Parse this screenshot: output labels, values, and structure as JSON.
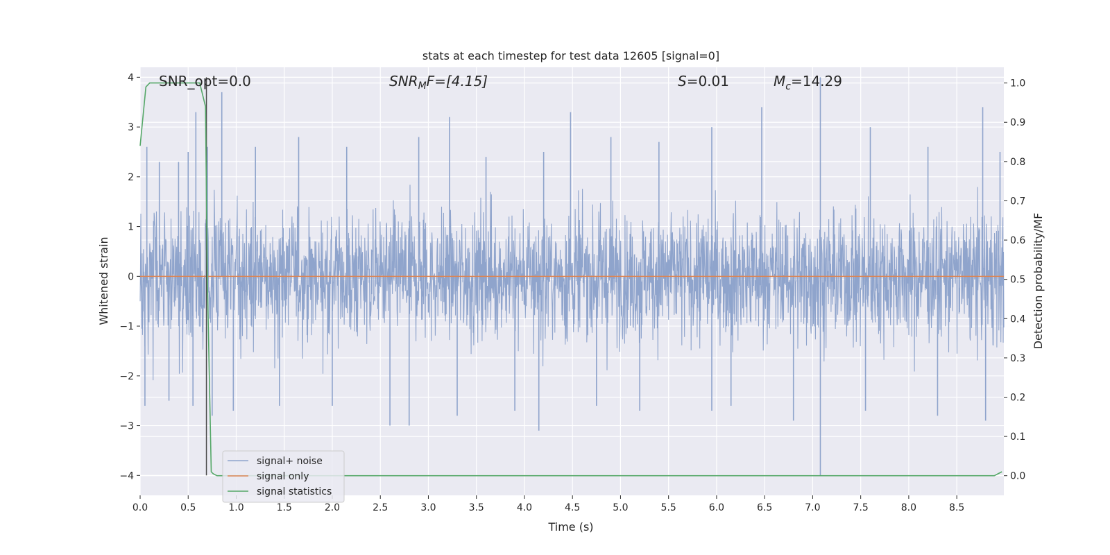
{
  "chart_data": {
    "type": "line",
    "title": "stats at each timestep for test data 12605 [signal=0]",
    "xlabel": "Time (s)",
    "ylabel": "Whitened strain",
    "y2label": "Detection probability/MF",
    "xlim": [
      0.0,
      8.99
    ],
    "ylim": [
      -4.4,
      4.2
    ],
    "y2lim": [
      -0.05,
      1.04
    ],
    "x_ticks": [
      "0.0",
      "0.5",
      "1.0",
      "1.5",
      "2.0",
      "2.5",
      "3.0",
      "3.5",
      "4.0",
      "4.5",
      "5.0",
      "5.5",
      "6.0",
      "6.5",
      "7.0",
      "7.5",
      "8.0",
      "8.5"
    ],
    "x_tick_values": [
      0.0,
      0.5,
      1.0,
      1.5,
      2.0,
      2.5,
      3.0,
      3.5,
      4.0,
      4.5,
      5.0,
      5.5,
      6.0,
      6.5,
      7.0,
      7.5,
      8.0,
      8.5
    ],
    "y_ticks": [
      "−4",
      "−3",
      "−2",
      "−1",
      "0",
      "1",
      "2",
      "3",
      "4"
    ],
    "y_tick_values": [
      -4,
      -3,
      -2,
      -1,
      0,
      1,
      2,
      3,
      4
    ],
    "y2_ticks": [
      "0.0",
      "0.1",
      "0.2",
      "0.3",
      "0.4",
      "0.5",
      "0.6",
      "0.7",
      "0.8",
      "0.9",
      "1.0"
    ],
    "y2_tick_values": [
      0.0,
      0.1,
      0.2,
      0.3,
      0.4,
      0.5,
      0.6,
      0.7,
      0.8,
      0.9,
      1.0
    ],
    "grid": true,
    "legend_position": "lower-left",
    "annotations": {
      "snr_opt": "SNR_opt=0.0",
      "snr_mf_base": "SNR",
      "snr_mf_sub": "M",
      "snr_mf_rest": "F=[4.15]",
      "s_label": "S",
      "s_value": "=0.01",
      "mc_base": "M",
      "mc_sub": "c",
      "mc_value": "=14.29"
    },
    "vertical_marker": {
      "x": 0.69,
      "y_top": 4.0,
      "y_bottom": -4.0
    },
    "series": [
      {
        "name": "signal+ noise",
        "color": "#8fa4cc",
        "axis": "left",
        "description": "whitened noise time series",
        "envelope_peaks_x": [
          0.07,
          0.2,
          0.4,
          0.5,
          0.58,
          0.7,
          0.85,
          1.2,
          1.65,
          2.15,
          2.9,
          3.22,
          3.6,
          4.2,
          4.48,
          4.9,
          5.4,
          5.95,
          6.47,
          7.08,
          7.6,
          8.2,
          8.77,
          8.95
        ],
        "envelope_peaks_y": [
          2.6,
          2.3,
          2.3,
          2.5,
          3.3,
          2.6,
          3.7,
          2.6,
          2.8,
          2.6,
          2.8,
          3.2,
          2.4,
          2.5,
          3.3,
          2.8,
          2.7,
          3.0,
          3.4,
          4.0,
          3.0,
          2.6,
          3.4,
          2.5
        ],
        "envelope_troughs_x": [
          0.05,
          0.3,
          0.55,
          0.75,
          0.97,
          1.45,
          2.0,
          2.6,
          2.8,
          3.3,
          3.9,
          4.15,
          4.75,
          5.2,
          5.95,
          6.15,
          6.8,
          7.08,
          7.55,
          8.3,
          8.8
        ],
        "envelope_troughs_y": [
          -2.6,
          -2.5,
          -2.6,
          -2.8,
          -2.7,
          -2.6,
          -2.6,
          -3.0,
          -3.0,
          -2.8,
          -2.7,
          -3.1,
          -2.6,
          -2.7,
          -2.7,
          -2.6,
          -2.9,
          -4.0,
          -2.7,
          -2.8,
          -2.9
        ]
      },
      {
        "name": "signal only",
        "color": "#dd8452",
        "axis": "left",
        "x": [
          0.0,
          8.99
        ],
        "y": [
          0.0,
          0.0
        ]
      },
      {
        "name": "signal statistics",
        "color": "#55a868",
        "axis": "right",
        "x": [
          0.0,
          0.06,
          0.1,
          0.2,
          0.3,
          0.4,
          0.5,
          0.6,
          0.62,
          0.68,
          0.7,
          0.74,
          0.76,
          0.8,
          0.9,
          1.5,
          2.0,
          3.0,
          4.0,
          5.0,
          6.0,
          7.0,
          8.0,
          8.89,
          8.97
        ],
        "y": [
          0.84,
          0.99,
          1.0,
          1.0,
          1.0,
          1.0,
          1.0,
          1.0,
          1.0,
          0.94,
          0.5,
          0.01,
          0.005,
          0.0,
          0.0,
          0.0,
          0.0,
          0.0,
          0.0,
          0.0,
          0.0,
          0.0,
          0.0,
          0.0,
          0.01
        ]
      }
    ]
  }
}
